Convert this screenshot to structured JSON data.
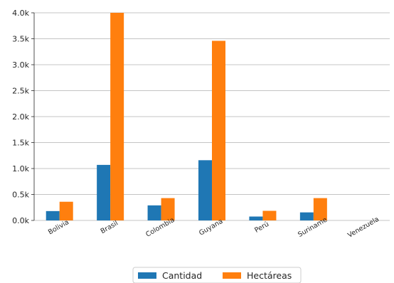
{
  "chart_data": {
    "type": "bar",
    "title": "",
    "xlabel": "",
    "ylabel": "",
    "categories": [
      "Bolivia",
      "Brasil",
      "Colombia",
      "Guyana",
      "Perú",
      "Suriname",
      "Venezuela"
    ],
    "series": [
      {
        "name": "Cantidad",
        "color": "#1f77b4",
        "values": [
          180,
          1070,
          290,
          1160,
          75,
          155,
          0
        ]
      },
      {
        "name": "Hectáreas",
        "color": "#ff7f0e",
        "values": [
          360,
          4000,
          430,
          3460,
          185,
          430,
          0
        ]
      }
    ],
    "ylim": [
      0,
      4000
    ],
    "yticks": [
      {
        "value": 0,
        "label": "0.0k"
      },
      {
        "value": 500,
        "label": "0.5k"
      },
      {
        "value": 1000,
        "label": "1.0k"
      },
      {
        "value": 1500,
        "label": "1.5k"
      },
      {
        "value": 2000,
        "label": "2.0k"
      },
      {
        "value": 2500,
        "label": "2.5k"
      },
      {
        "value": 3000,
        "label": "3.0k"
      },
      {
        "value": 3500,
        "label": "3.5k"
      },
      {
        "value": 4000,
        "label": "4.0k"
      }
    ],
    "grid": "horizontal",
    "legend": "bottom-center"
  }
}
